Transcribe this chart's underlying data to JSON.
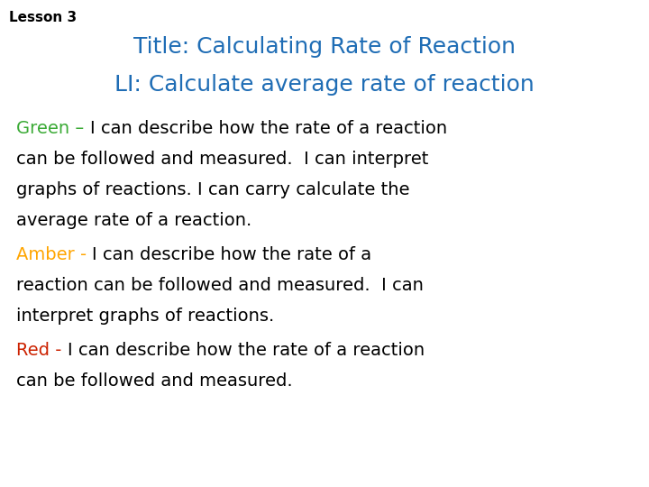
{
  "lesson_label": "Lesson 3",
  "title_line1": "Title: Calculating Rate of Reaction",
  "title_line2": "LI: Calculate average rate of reaction",
  "title_color": "#1f6db5",
  "lesson_label_color": "#000000",
  "background_color": "#ffffff",
  "green_label": "Green – ",
  "green_color": "#3aaa35",
  "green_lines": [
    "I can describe how the rate of a reaction",
    "can be followed and measured.  I can interpret",
    "graphs of reactions. I can carry calculate the",
    "average rate of a reaction."
  ],
  "amber_label": "Amber - ",
  "amber_color": "#ffa500",
  "amber_lines": [
    "I can describe how the rate of a",
    "reaction can be followed and measured.  I can",
    "interpret graphs of reactions."
  ],
  "red_label": "Red - ",
  "red_color": "#cc2200",
  "red_lines": [
    "I can describe how the rate of a reaction",
    "can be followed and measured."
  ],
  "body_color": "#000000",
  "lesson_fontsize": 11,
  "title_fontsize": 18,
  "body_fontsize": 14,
  "figsize": [
    7.2,
    5.4
  ],
  "dpi": 100
}
